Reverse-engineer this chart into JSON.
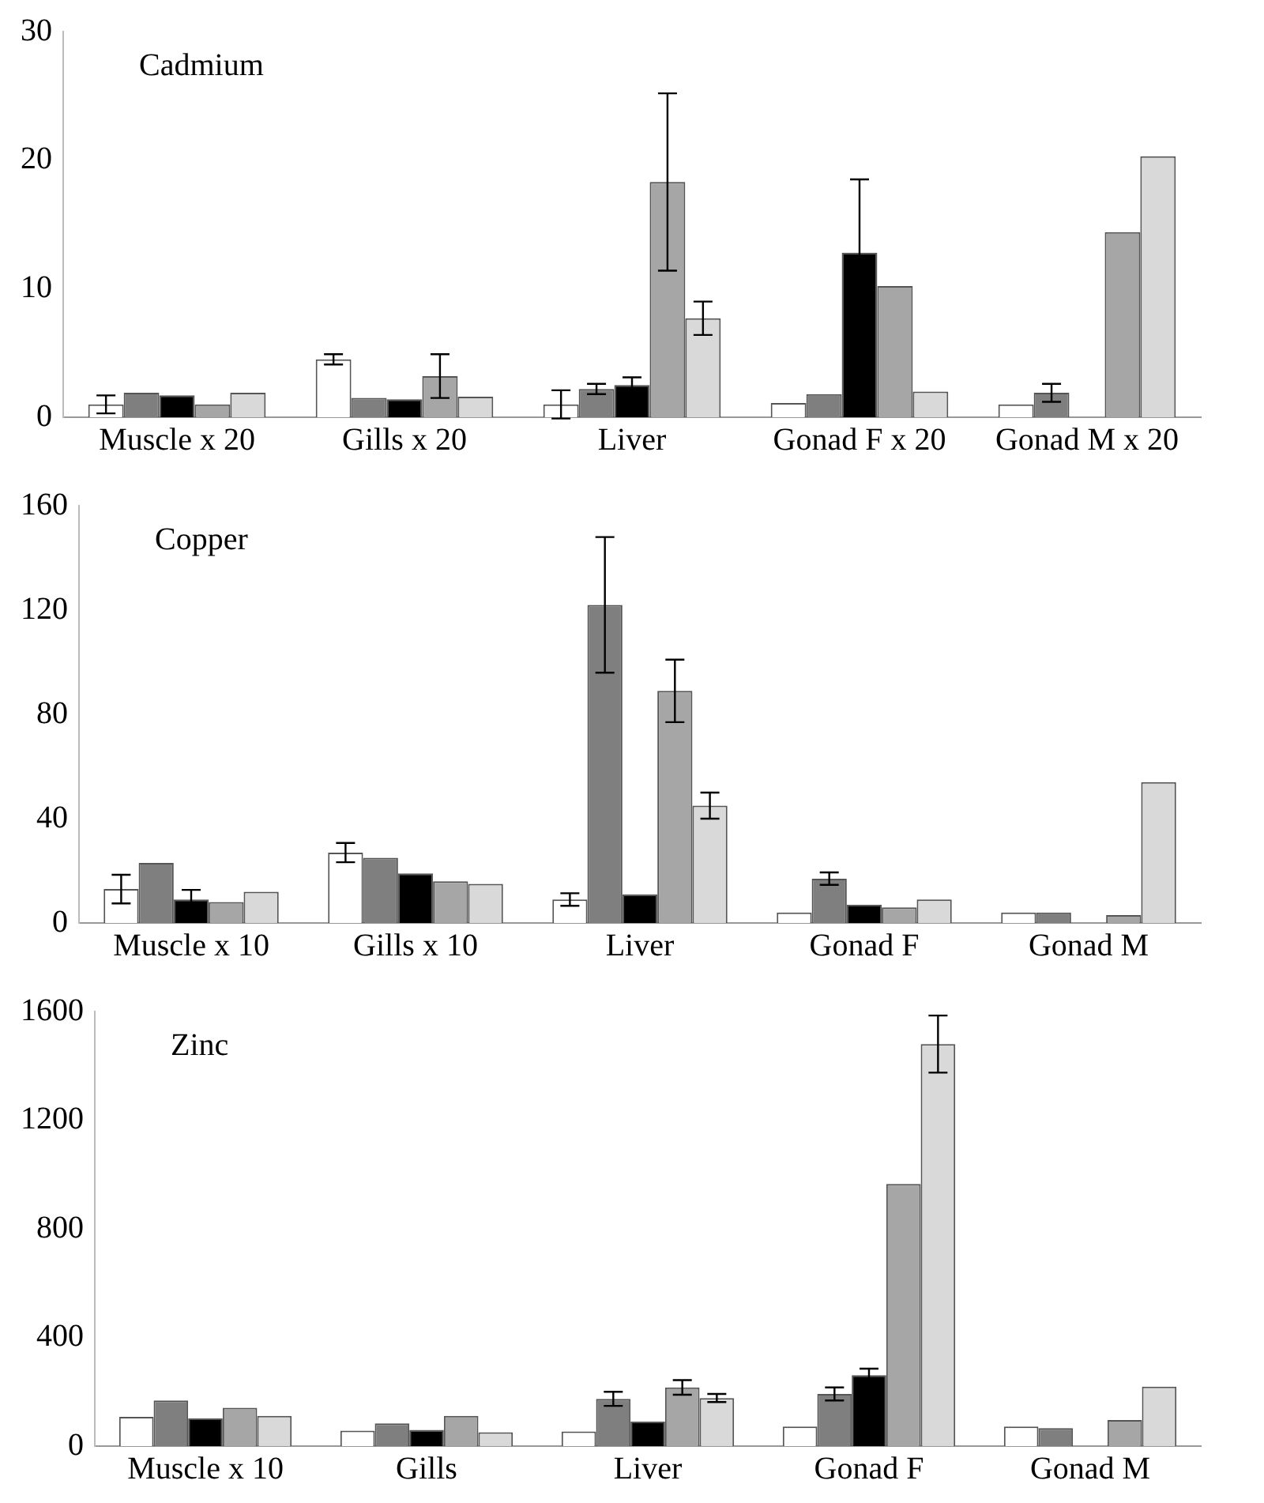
{
  "chart_data": [
    {
      "type": "bar",
      "title": "Cadmium",
      "categories": [
        "Muscle x 20",
        "Gills x 20",
        "Liver",
        "Gonad F x 20",
        "Gonad M x 20"
      ],
      "ylim": [
        0,
        30
      ],
      "yticks": [
        0,
        10,
        20,
        30
      ],
      "grid": false,
      "legend": false,
      "series": [
        {
          "color": "#ffffff",
          "values": [
            1.0,
            4.5,
            1.0,
            1.1,
            1.0
          ],
          "errors": [
            0.7,
            0.4,
            1.1,
            null,
            null
          ]
        },
        {
          "color": "#7f7f7f",
          "values": [
            1.9,
            1.5,
            2.2,
            1.8,
            1.9
          ],
          "errors": [
            null,
            null,
            0.4,
            null,
            0.7
          ]
        },
        {
          "color": "#000000",
          "values": [
            1.7,
            1.4,
            2.5,
            12.8,
            null
          ],
          "errors": [
            null,
            null,
            0.6,
            5.7,
            null
          ]
        },
        {
          "color": "#a6a6a6",
          "values": [
            1.0,
            3.2,
            18.3,
            10.2,
            14.4
          ],
          "errors": [
            null,
            1.7,
            6.9,
            null,
            null
          ]
        },
        {
          "color": "#d9d9d9",
          "values": [
            1.9,
            1.6,
            7.7,
            2.0,
            20.3
          ],
          "errors": [
            null,
            null,
            1.3,
            null,
            null
          ]
        }
      ]
    },
    {
      "type": "bar",
      "title": "Copper",
      "categories": [
        "Muscle x 10",
        "Gills x 10",
        "Liver",
        "Gonad F",
        "Gonad M"
      ],
      "ylim": [
        0,
        160
      ],
      "yticks": [
        0,
        40,
        80,
        120,
        160
      ],
      "grid": false,
      "legend": false,
      "series": [
        {
          "color": "#ffffff",
          "values": [
            13,
            27,
            9,
            4,
            4
          ],
          "errors": [
            5.5,
            3.7,
            2.4,
            null,
            null
          ]
        },
        {
          "color": "#7f7f7f",
          "values": [
            23,
            25,
            122,
            17,
            4
          ],
          "errors": [
            null,
            null,
            26,
            2.4,
            null
          ]
        },
        {
          "color": "#000000",
          "values": [
            9,
            19,
            11,
            7,
            null
          ],
          "errors": [
            3.7,
            null,
            null,
            null,
            null
          ]
        },
        {
          "color": "#a6a6a6",
          "values": [
            8,
            16,
            89,
            6,
            3
          ],
          "errors": [
            null,
            null,
            12,
            null,
            null
          ]
        },
        {
          "color": "#d9d9d9",
          "values": [
            12,
            15,
            45,
            9,
            54
          ],
          "errors": [
            null,
            null,
            5,
            null,
            null
          ]
        }
      ]
    },
    {
      "type": "bar",
      "title": "Zinc",
      "categories": [
        "Muscle x 10",
        "Gills",
        "Liver",
        "Gonad F",
        "Gonad M"
      ],
      "ylim": [
        0,
        1600
      ],
      "yticks": [
        0,
        400,
        800,
        1200,
        1600
      ],
      "grid": false,
      "legend": false,
      "series": [
        {
          "color": "#ffffff",
          "values": [
            108,
            57,
            54,
            72,
            72
          ],
          "errors": [
            null,
            null,
            null,
            null,
            null
          ]
        },
        {
          "color": "#7f7f7f",
          "values": [
            168,
            84,
            174,
            192,
            66
          ],
          "errors": [
            null,
            null,
            26,
            24,
            null
          ]
        },
        {
          "color": "#000000",
          "values": [
            102,
            60,
            90,
            261,
            null
          ],
          "errors": [
            null,
            null,
            null,
            24,
            null
          ]
        },
        {
          "color": "#a6a6a6",
          "values": [
            141,
            111,
            216,
            965,
            96
          ],
          "errors": [
            null,
            null,
            27,
            null,
            null
          ]
        },
        {
          "color": "#d9d9d9",
          "values": [
            111,
            51,
            177,
            1480,
            219
          ],
          "errors": [
            null,
            null,
            15,
            105,
            null
          ]
        }
      ]
    }
  ]
}
